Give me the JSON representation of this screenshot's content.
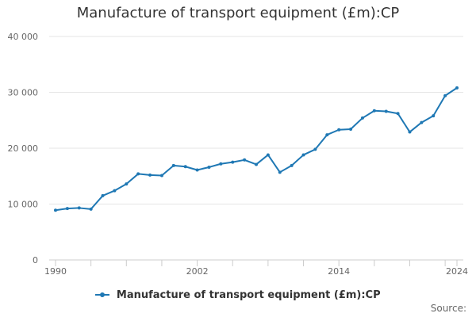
{
  "chart_data": {
    "type": "line",
    "title": "Manufacture of transport equipment (£m):CP",
    "xlabel": "",
    "ylabel": "",
    "x": [
      1990,
      1991,
      1992,
      1993,
      1994,
      1995,
      1996,
      1997,
      1998,
      1999,
      2000,
      2001,
      2002,
      2003,
      2004,
      2005,
      2006,
      2007,
      2008,
      2009,
      2010,
      2011,
      2012,
      2013,
      2014,
      2015,
      2016,
      2017,
      2018,
      2019,
      2020,
      2021,
      2022,
      2023,
      2024
    ],
    "xlim": [
      1990,
      2024
    ],
    "x_tick_labels": [
      "1990",
      "2002",
      "2014",
      "2024"
    ],
    "y_tick_labels": [
      "0",
      "10 000",
      "20 000",
      "30 000",
      "40 000"
    ],
    "ylim": [
      0,
      40000
    ],
    "grid": true,
    "legend_position": "bottom",
    "series": [
      {
        "name": "Manufacture of transport equipment (£m):CP",
        "color": "#1f78b4",
        "values": [
          8900,
          9200,
          9300,
          9100,
          11500,
          12400,
          13600,
          15400,
          15200,
          15100,
          16900,
          16700,
          16100,
          16600,
          17200,
          17500,
          17900,
          17100,
          18800,
          15700,
          16900,
          18800,
          19800,
          22400,
          23300,
          23400,
          25400,
          26700,
          26600,
          26200,
          22900,
          24600,
          25800,
          29400,
          30800
        ]
      }
    ]
  },
  "legend": {
    "label": "Manufacture of transport equipment (£m):CP"
  },
  "source": {
    "label": "Source:"
  }
}
